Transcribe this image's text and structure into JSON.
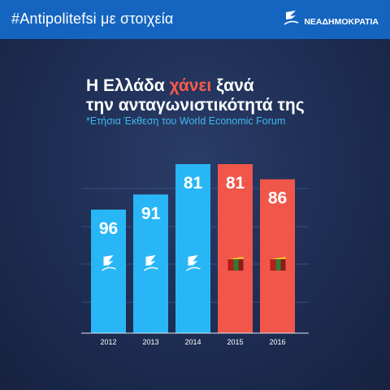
{
  "header": {
    "hashtag": "#Antipolitefsi",
    "hashtag_suffix": " με στοιχεία",
    "logo_text": "ΝΕΑΔΗΜΟΚΡΑΤΙΑ",
    "logo_icon": "nd-torch-icon"
  },
  "title_part1": "Η Ελλάδα ",
  "title_highlight": "χάνει",
  "title_part2": " ξανά",
  "title_line2": "την ανταγωνιστικότητά της",
  "source": "*Ετήσια Έκθεση του World Economic Forum",
  "colors": {
    "header_bg": "#1565c0",
    "background": "#1f2f56",
    "highlight": "#ff5a4a",
    "bar_blue": "#29b6f6",
    "bar_red": "#f0564a",
    "source_text": "#3fb8f0"
  },
  "chart_data": {
    "type": "bar",
    "categories": [
      "2012",
      "2013",
      "2014",
      "2015",
      "2016"
    ],
    "values": [
      96,
      91,
      81,
      81,
      86
    ],
    "bar_colors": [
      "#29b6f6",
      "#29b6f6",
      "#29b6f6",
      "#f0564a",
      "#f0564a"
    ],
    "bar_icons": [
      "nd-torch-icon",
      "nd-torch-icon",
      "nd-torch-icon",
      "syriza-flag-icon",
      "syriza-flag-icon"
    ],
    "title": "",
    "xlabel": "",
    "ylabel": "",
    "grid": true,
    "note": "rank scale: lower number is better; taller bar = better rank"
  }
}
